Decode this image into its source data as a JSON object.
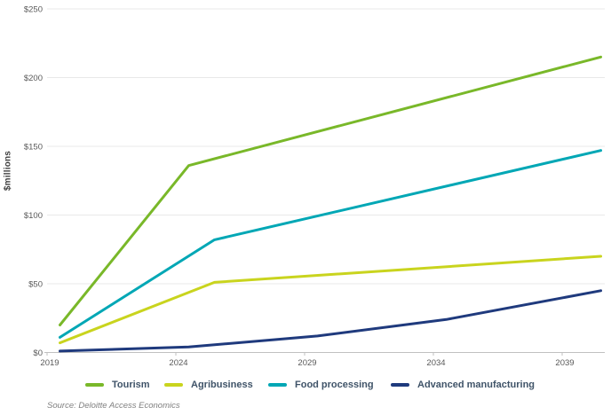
{
  "chart_data": {
    "type": "line",
    "title": "",
    "xlabel": "",
    "ylabel": "$millions",
    "xlim": [
      2019,
      2040
    ],
    "ylim": [
      0,
      250
    ],
    "grid": "horizontal",
    "legend_position": "bottom",
    "x_ticks": [
      2019,
      2024,
      2029,
      2034,
      2039
    ],
    "y_tick_values": [
      0,
      50,
      100,
      150,
      200,
      250
    ],
    "y_ticks": [
      "$0",
      "$50",
      "$100",
      "$150",
      "$200",
      "$250"
    ],
    "series": [
      {
        "name": "Tourism",
        "color": "#79B829",
        "points": [
          [
            2019,
            20
          ],
          [
            2024,
            136
          ],
          [
            2040,
            215
          ]
        ]
      },
      {
        "name": "Agribusiness",
        "color": "#C9D41E",
        "points": [
          [
            2019,
            7
          ],
          [
            2025,
            51
          ],
          [
            2040,
            70
          ]
        ]
      },
      {
        "name": "Food processing",
        "color": "#00A7B5",
        "points": [
          [
            2019,
            11
          ],
          [
            2025,
            82
          ],
          [
            2040,
            147
          ]
        ]
      },
      {
        "name": "Advanced manufacturing",
        "color": "#1F3A7D",
        "points": [
          [
            2019,
            1
          ],
          [
            2024,
            4
          ],
          [
            2029,
            12
          ],
          [
            2034,
            24
          ],
          [
            2040,
            45
          ]
        ]
      }
    ]
  },
  "source": "Source: Deloitte Access Economics",
  "colors": {
    "background": "#FFFFFF",
    "grid": "#E8E8E8",
    "axis": "#C0C0C0",
    "tick_label": "#595959",
    "axis_title": "#404040",
    "legend_text": "#3F5368",
    "source_text": "#7F7F7F"
  }
}
